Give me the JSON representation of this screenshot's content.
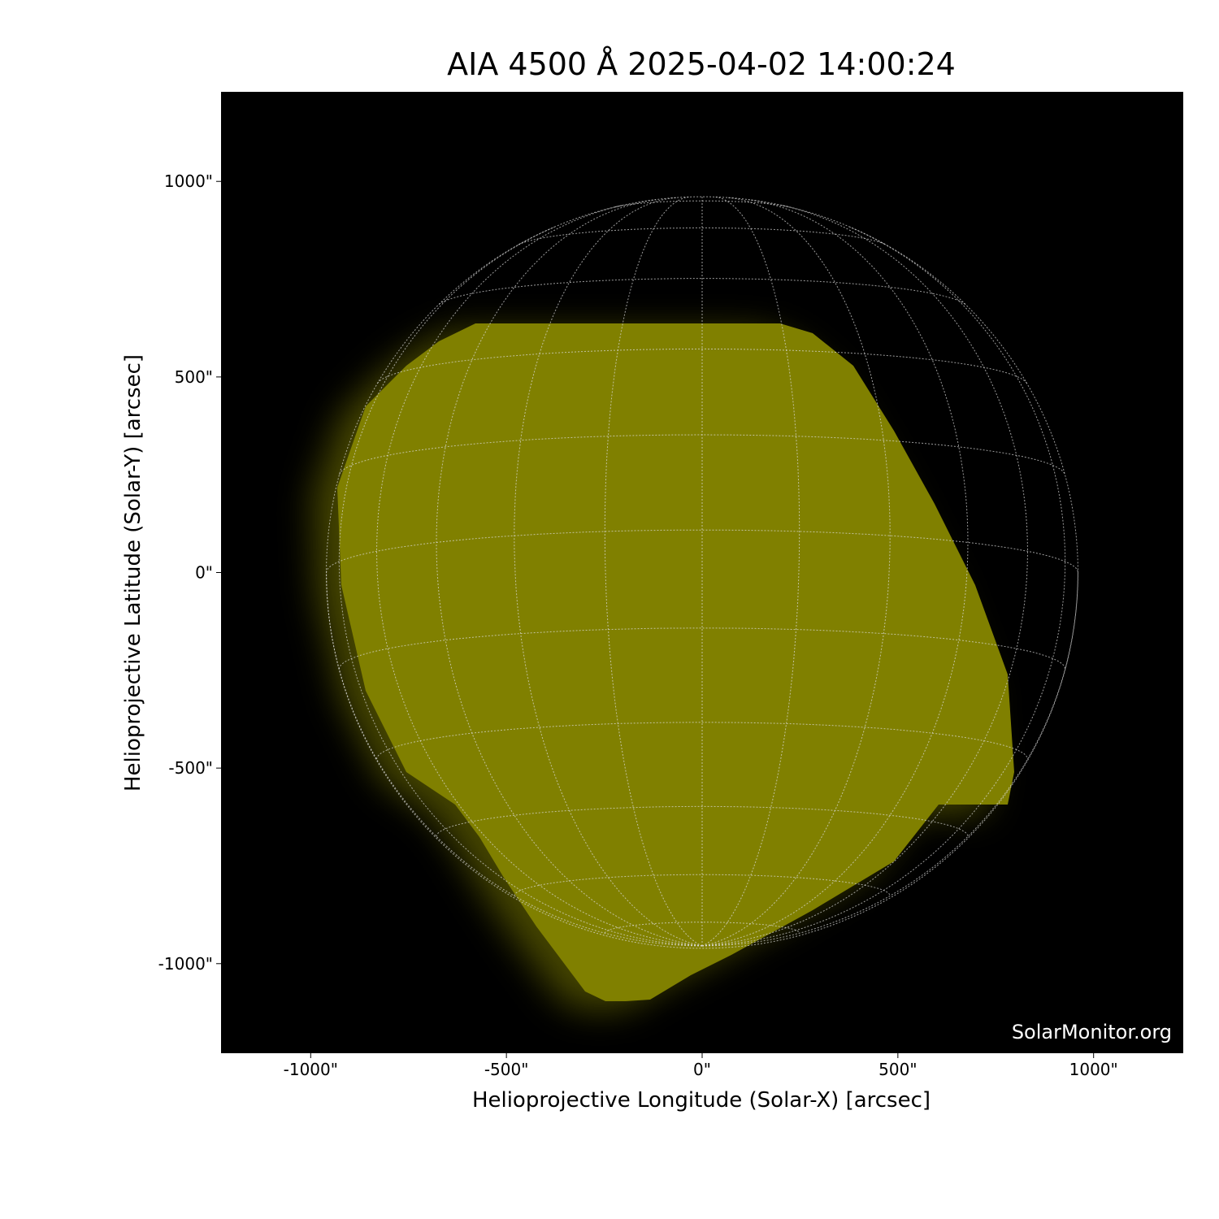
{
  "chart_data": {
    "type": "image",
    "title": "AIA 4500 Å 2025-04-02 14:00:24",
    "xlabel": "Helioprojective Longitude (Solar-X) [arcsec]",
    "ylabel": "Helioprojective Latitude (Solar-Y) [arcsec]",
    "xlim": [
      -1229,
      1229
    ],
    "ylim": [
      -1229,
      1229
    ],
    "xticks": [
      {
        "value": -1000,
        "label": "-1000\""
      },
      {
        "value": -500,
        "label": "-500\""
      },
      {
        "value": 0,
        "label": "0\""
      },
      {
        "value": 500,
        "label": "500\""
      },
      {
        "value": 1000,
        "label": "1000\""
      }
    ],
    "yticks": [
      {
        "value": -1000,
        "label": "-1000\""
      },
      {
        "value": -500,
        "label": "-500\""
      },
      {
        "value": 0,
        "label": "0\""
      },
      {
        "value": 500,
        "label": "500\""
      },
      {
        "value": 1000,
        "label": "1000\""
      }
    ],
    "watermark": "SolarMonitor.org",
    "color": "#808000"
  }
}
